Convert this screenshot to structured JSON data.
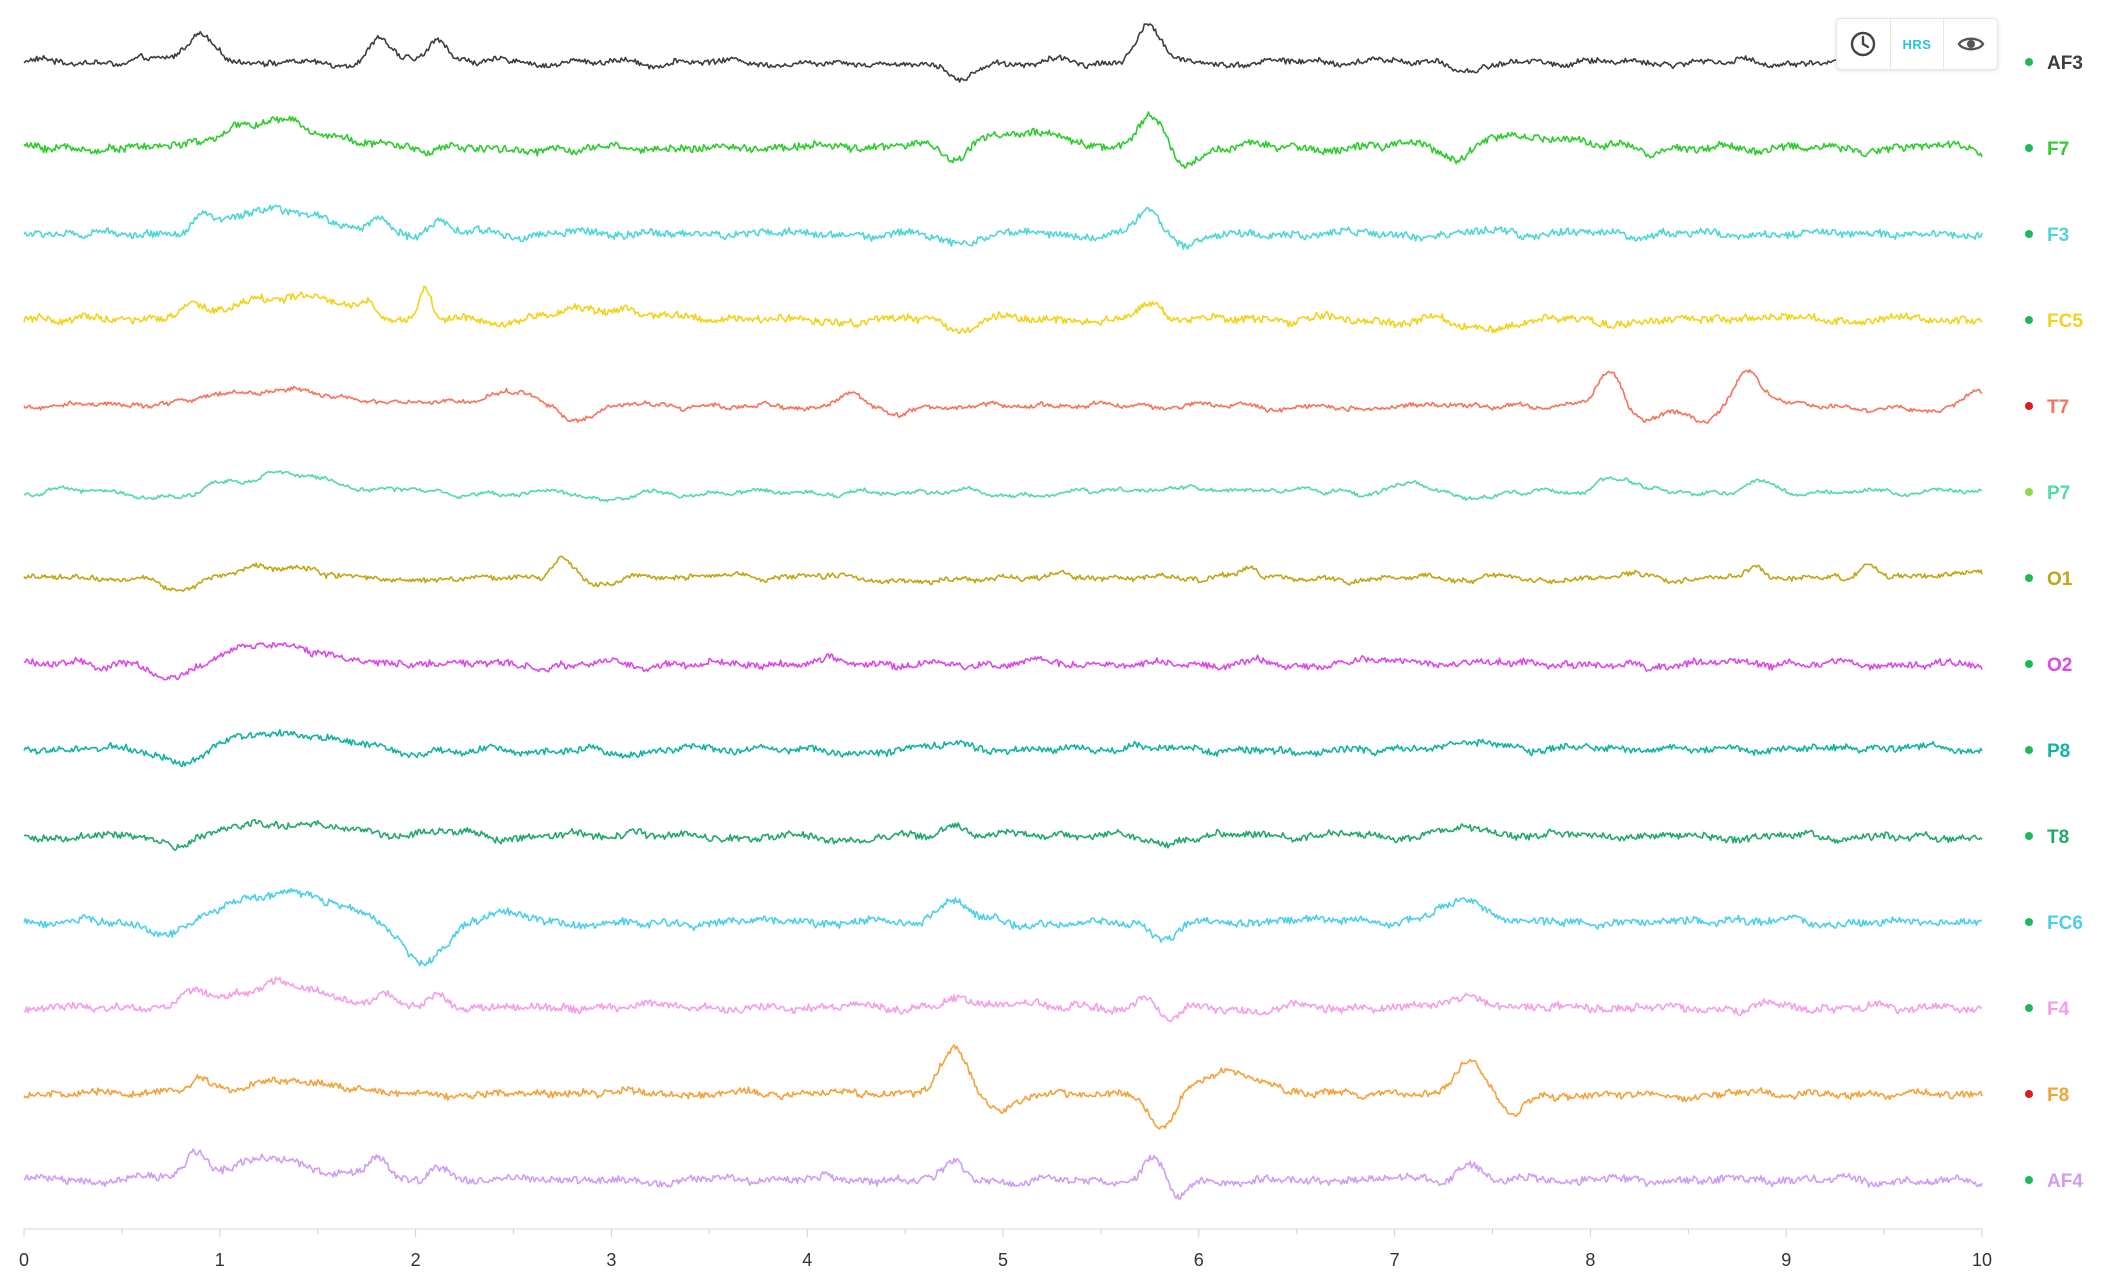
{
  "toolbar": {
    "buttons": [
      {
        "icon": "clock-icon",
        "label": ""
      },
      {
        "icon": "hrs-icon",
        "label": "HRS"
      },
      {
        "icon": "eye-icon",
        "label": ""
      }
    ]
  },
  "chart_data": {
    "type": "line",
    "title": "",
    "xlabel": "",
    "ylabel": "",
    "xlim": [
      0,
      10
    ],
    "x_ticks": [
      "0",
      "1",
      "2",
      "3",
      "4",
      "5",
      "6",
      "7",
      "8",
      "9",
      "10"
    ],
    "grid": false,
    "legend_placement": "right",
    "series": [
      {
        "name": "AF3",
        "color": "#3d3d3d",
        "status_color": "#1db954",
        "amplitude": 1.0,
        "noise": 0.14,
        "events": [
          [
            0.9,
            0.07,
            1.1
          ],
          [
            1.82,
            0.05,
            1.1
          ],
          [
            2.12,
            0.05,
            1.0
          ],
          [
            4.78,
            0.06,
            -0.8
          ],
          [
            5.74,
            0.06,
            1.6
          ],
          [
            7.4,
            0.08,
            -0.4
          ]
        ]
      },
      {
        "name": "F7",
        "color": "#2ecc2e",
        "status_color": "#1db954",
        "amplitude": 1.0,
        "noise": 0.2,
        "events": [
          [
            1.3,
            0.25,
            1.1
          ],
          [
            4.75,
            0.07,
            -0.9
          ],
          [
            5.0,
            0.3,
            0.6
          ],
          [
            5.76,
            0.07,
            1.3
          ],
          [
            5.92,
            0.06,
            -0.8
          ],
          [
            7.32,
            0.07,
            -0.9
          ],
          [
            7.6,
            0.3,
            0.5
          ]
        ]
      },
      {
        "name": "F3",
        "color": "#4fd6d6",
        "status_color": "#1db954",
        "amplitude": 1.0,
        "noise": 0.2,
        "events": [
          [
            0.9,
            0.05,
            0.7
          ],
          [
            1.3,
            0.25,
            0.9
          ],
          [
            1.82,
            0.05,
            0.6
          ],
          [
            2.12,
            0.05,
            0.4
          ],
          [
            4.78,
            0.06,
            -0.5
          ],
          [
            5.74,
            0.05,
            1.1
          ],
          [
            5.92,
            0.05,
            -0.6
          ]
        ]
      },
      {
        "name": "FC5",
        "color": "#f2d21b",
        "status_color": "#1db954",
        "amplitude": 1.0,
        "noise": 0.2,
        "events": [
          [
            0.85,
            0.06,
            0.4
          ],
          [
            1.35,
            0.25,
            1.0
          ],
          [
            1.76,
            0.04,
            0.5
          ],
          [
            2.05,
            0.03,
            1.3
          ],
          [
            2.95,
            0.2,
            0.5
          ],
          [
            4.78,
            0.06,
            -0.5
          ],
          [
            5.74,
            0.06,
            0.8
          ],
          [
            7.45,
            0.1,
            -0.5
          ]
        ]
      },
      {
        "name": "T7",
        "color": "#f5735a",
        "status_color": "#e01b1b",
        "amplitude": 1.0,
        "noise": 0.1,
        "events": [
          [
            1.3,
            0.3,
            0.7
          ],
          [
            2.5,
            0.15,
            0.6
          ],
          [
            2.8,
            0.1,
            -0.6
          ],
          [
            4.22,
            0.05,
            0.6
          ],
          [
            4.45,
            0.06,
            -0.4
          ],
          [
            8.1,
            0.06,
            1.8
          ],
          [
            8.25,
            0.1,
            -0.6
          ],
          [
            8.8,
            0.07,
            1.5
          ],
          [
            8.55,
            0.1,
            -0.5
          ],
          [
            9.98,
            0.06,
            0.6
          ]
        ]
      },
      {
        "name": "P7",
        "color": "#52d9a6",
        "status_color": "#8ed94a",
        "amplitude": 1.0,
        "noise": 0.08,
        "events": [
          [
            0.8,
            0.12,
            -0.5
          ],
          [
            1.3,
            0.3,
            0.7
          ],
          [
            3.0,
            0.15,
            -0.3
          ],
          [
            7.1,
            0.12,
            0.4
          ],
          [
            7.4,
            0.12,
            -0.4
          ],
          [
            8.1,
            0.1,
            0.5
          ],
          [
            8.85,
            0.06,
            0.4
          ]
        ]
      },
      {
        "name": "O1",
        "color": "#c1a513",
        "status_color": "#1db954",
        "amplitude": 1.0,
        "noise": 0.12,
        "events": [
          [
            0.8,
            0.1,
            -0.6
          ],
          [
            1.3,
            0.25,
            0.5
          ],
          [
            2.75,
            0.05,
            0.8
          ],
          [
            2.95,
            0.08,
            -0.4
          ],
          [
            6.25,
            0.05,
            0.5
          ],
          [
            8.85,
            0.04,
            0.5
          ],
          [
            9.42,
            0.04,
            0.6
          ]
        ]
      },
      {
        "name": "O2",
        "color": "#d94ae6",
        "status_color": "#1db954",
        "amplitude": 1.0,
        "noise": 0.18,
        "events": [
          [
            0.75,
            0.1,
            -0.7
          ],
          [
            1.3,
            0.25,
            0.8
          ]
        ]
      },
      {
        "name": "P8",
        "color": "#13b3a0",
        "status_color": "#1db954",
        "amplitude": 1.0,
        "noise": 0.18,
        "events": [
          [
            0.8,
            0.12,
            -0.6
          ],
          [
            1.3,
            0.25,
            0.7
          ],
          [
            4.75,
            0.07,
            0.3
          ],
          [
            7.4,
            0.1,
            0.3
          ]
        ]
      },
      {
        "name": "T8",
        "color": "#22a86b",
        "status_color": "#1db954",
        "amplitude": 1.0,
        "noise": 0.18,
        "events": [
          [
            0.8,
            0.15,
            -0.4
          ],
          [
            1.3,
            0.25,
            0.6
          ],
          [
            4.75,
            0.07,
            0.4
          ],
          [
            5.82,
            0.06,
            -0.5
          ],
          [
            7.4,
            0.1,
            0.4
          ]
        ]
      },
      {
        "name": "FC6",
        "color": "#4dcfea",
        "status_color": "#1db954",
        "amplitude": 1.0,
        "noise": 0.2,
        "events": [
          [
            0.75,
            0.1,
            -0.6
          ],
          [
            1.35,
            0.25,
            1.2
          ],
          [
            2.05,
            0.12,
            -1.8
          ],
          [
            2.4,
            0.15,
            0.5
          ],
          [
            4.75,
            0.07,
            0.9
          ],
          [
            5.82,
            0.06,
            -0.8
          ],
          [
            7.35,
            0.1,
            0.9
          ]
        ]
      },
      {
        "name": "F4",
        "color": "#f59ee8",
        "status_color": "#1db954",
        "amplitude": 1.0,
        "noise": 0.2,
        "events": [
          [
            0.88,
            0.05,
            0.6
          ],
          [
            1.3,
            0.25,
            0.9
          ],
          [
            1.85,
            0.05,
            0.5
          ],
          [
            2.12,
            0.05,
            0.5
          ],
          [
            4.75,
            0.06,
            0.6
          ],
          [
            5.74,
            0.05,
            0.6
          ],
          [
            5.85,
            0.05,
            -0.6
          ],
          [
            7.38,
            0.07,
            0.5
          ]
        ]
      },
      {
        "name": "F8",
        "color": "#f5a13a",
        "status_color": "#e01b1b",
        "amplitude": 1.0,
        "noise": 0.18,
        "events": [
          [
            0.9,
            0.05,
            0.6
          ],
          [
            1.35,
            0.25,
            0.6
          ],
          [
            4.75,
            0.07,
            1.7
          ],
          [
            4.98,
            0.08,
            -0.8
          ],
          [
            5.82,
            0.06,
            -1.6
          ],
          [
            6.15,
            0.15,
            1.0
          ],
          [
            7.38,
            0.07,
            1.6
          ],
          [
            7.6,
            0.07,
            -0.8
          ]
        ]
      },
      {
        "name": "AF4",
        "color": "#cf9df5",
        "status_color": "#1db954",
        "amplitude": 1.0,
        "noise": 0.2,
        "events": [
          [
            0.88,
            0.05,
            0.9
          ],
          [
            1.3,
            0.25,
            0.8
          ],
          [
            1.82,
            0.05,
            0.8
          ],
          [
            2.12,
            0.05,
            0.6
          ],
          [
            4.75,
            0.05,
            0.8
          ],
          [
            5.78,
            0.05,
            1.0
          ],
          [
            5.88,
            0.05,
            -0.8
          ],
          [
            7.38,
            0.06,
            0.6
          ]
        ]
      }
    ]
  }
}
